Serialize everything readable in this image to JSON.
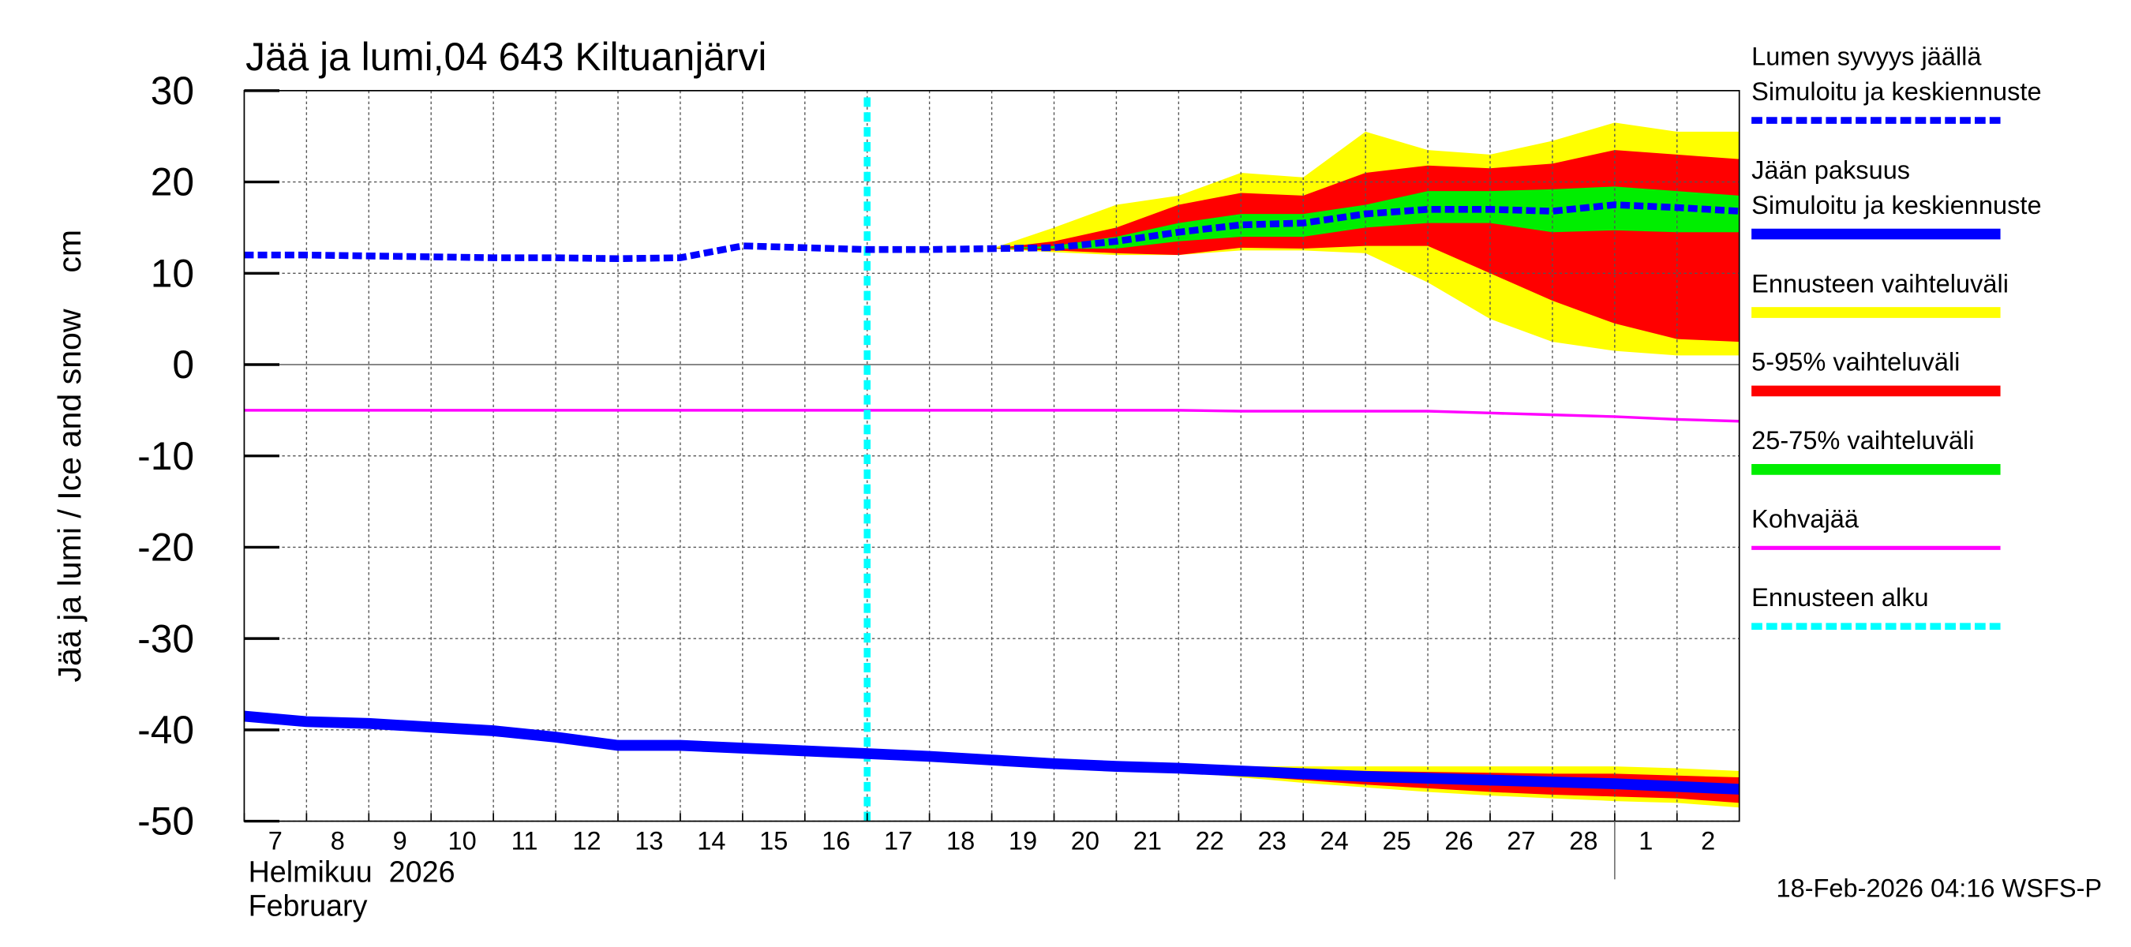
{
  "chart_data": {
    "type": "area",
    "title": "Jää ja lumi,04 643 Kiltuanjärvi",
    "ylabel": "Jää ja lumi / Ice and snow    cm",
    "ylim": [
      -50,
      30
    ],
    "yticks": [
      30,
      20,
      10,
      0,
      -10,
      -20,
      -30,
      -40,
      -50
    ],
    "grid": true,
    "legend_placement": "right",
    "x_ticks": [
      "7",
      "8",
      "9",
      "10",
      "11",
      "12",
      "13",
      "14",
      "15",
      "16",
      "17",
      "18",
      "19",
      "20",
      "21",
      "22",
      "23",
      "24",
      "25",
      "26",
      "27",
      "28",
      "1",
      "2"
    ],
    "x_dates": [
      "2026-02-07",
      "2026-02-08",
      "2026-02-09",
      "2026-02-10",
      "2026-02-11",
      "2026-02-12",
      "2026-02-13",
      "2026-02-14",
      "2026-02-15",
      "2026-02-16",
      "2026-02-17",
      "2026-02-18",
      "2026-02-19",
      "2026-02-20",
      "2026-02-21",
      "2026-02-22",
      "2026-02-23",
      "2026-02-24",
      "2026-02-25",
      "2026-02-26",
      "2026-02-27",
      "2026-02-28",
      "2026-03-01",
      "2026-03-02",
      "2026-03-03"
    ],
    "xlabel_line1": "Helmikuu  2026",
    "xlabel_line2": "February",
    "forecast_start": "2026-02-17",
    "snow": {
      "median": [
        12,
        12,
        11.9,
        11.8,
        11.7,
        11.7,
        11.6,
        11.7,
        13,
        12.8,
        12.6,
        12.6,
        12.7,
        12.8,
        13.5,
        14.5,
        15.3,
        15.5,
        16.5,
        17,
        17,
        16.8,
        17.5,
        17.2,
        16.8
      ],
      "band_start": "2026-02-19",
      "yellow_top": [
        12.7,
        15,
        17.5,
        18.5,
        21,
        20.5,
        25.5,
        23.5,
        23,
        24.5,
        26.5,
        25.5,
        25.5
      ],
      "yellow_bot": [
        12.7,
        12.3,
        12,
        12,
        12.5,
        12.5,
        12.2,
        9,
        5,
        2.5,
        1.5,
        1,
        1
      ],
      "red_top": [
        12.7,
        13.5,
        15,
        17.5,
        18.8,
        18.5,
        21,
        21.8,
        21.5,
        22,
        23.5,
        23,
        22.5
      ],
      "red_bot": [
        12.7,
        12.5,
        12.2,
        12,
        12.8,
        12.7,
        13,
        13,
        10,
        7,
        4.5,
        2.8,
        2.5
      ],
      "green_top": [
        12.7,
        13,
        14,
        15.5,
        16.5,
        16.5,
        17.5,
        19,
        19,
        19.2,
        19.5,
        19,
        18.5
      ],
      "green_bot": [
        12.7,
        12.7,
        12.7,
        13.5,
        14,
        14,
        15,
        15.5,
        15.5,
        14.5,
        14.7,
        14.5,
        14.5
      ]
    },
    "ice": {
      "median": [
        -38.5,
        -39.1,
        -39.3,
        -39.7,
        -40.1,
        -40.8,
        -41.7,
        -41.7,
        -42,
        -42.3,
        -42.6,
        -42.9,
        -43.3,
        -43.7,
        -44,
        -44.2,
        -44.5,
        -44.8,
        -45.1,
        -45.3,
        -45.5,
        -45.7,
        -45.9,
        -46.2,
        -46.5
      ],
      "band_start": "2026-02-21",
      "yellow_top": [
        -44,
        -44,
        -44,
        -44,
        -44,
        -44,
        -44,
        -44,
        -44,
        -44.2,
        -44.5
      ],
      "yellow_bot": [
        -44,
        -44.6,
        -45.2,
        -45.8,
        -46.3,
        -46.8,
        -47.2,
        -47.5,
        -47.8,
        -48,
        -48.5
      ],
      "red_top": [
        -44,
        -44.1,
        -44.3,
        -44.4,
        -44.5,
        -44.6,
        -44.7,
        -44.8,
        -44.8,
        -45,
        -45.2
      ],
      "red_bot": [
        -44,
        -44.5,
        -45,
        -45.5,
        -46,
        -46.4,
        -46.8,
        -47.1,
        -47.3,
        -47.5,
        -48
      ],
      "green_top": [
        -44,
        -44.2,
        -44.4,
        -44.7,
        -44.9,
        -45.1,
        -45.2,
        -45.4,
        -45.5,
        -45.7,
        -46
      ],
      "green_bot": [
        -44,
        -44.3,
        -44.7,
        -45.1,
        -45.4,
        -45.7,
        -46,
        -46.2,
        -46.4,
        -46.6,
        -47
      ]
    },
    "kohvajaa": [
      -5,
      -5,
      -5,
      -5,
      -5,
      -5,
      -5,
      -5,
      -5,
      -5,
      -5,
      -5,
      -5,
      -5,
      -5,
      -5,
      -5.1,
      -5.1,
      -5.1,
      -5.1,
      -5.3,
      -5.5,
      -5.7,
      -6,
      -6.2
    ],
    "legend": [
      {
        "label1": "Lumen syvyys jäällä",
        "label2": "Simuloitu ja keskiennuste",
        "color": "#0000ff",
        "style": "dashed"
      },
      {
        "label1": "Jään paksuus",
        "label2": "Simuloitu ja keskiennuste",
        "color": "#0000ff",
        "style": "solid"
      },
      {
        "label1": "Ennusteen vaihteluväli",
        "color": "#ffff00",
        "style": "solid"
      },
      {
        "label1": "5-95% vaihteluväli",
        "color": "#ff0000",
        "style": "solid"
      },
      {
        "label1": "25-75% vaihteluväli",
        "color": "#00ee00",
        "style": "solid"
      },
      {
        "label1": "Kohvajää",
        "color": "#ff00ff",
        "style": "thin"
      },
      {
        "label1": "Ennusteen alku",
        "color": "#00ffff",
        "style": "dashed"
      }
    ],
    "footer": "18-Feb-2026 04:16 WSFS-P"
  }
}
